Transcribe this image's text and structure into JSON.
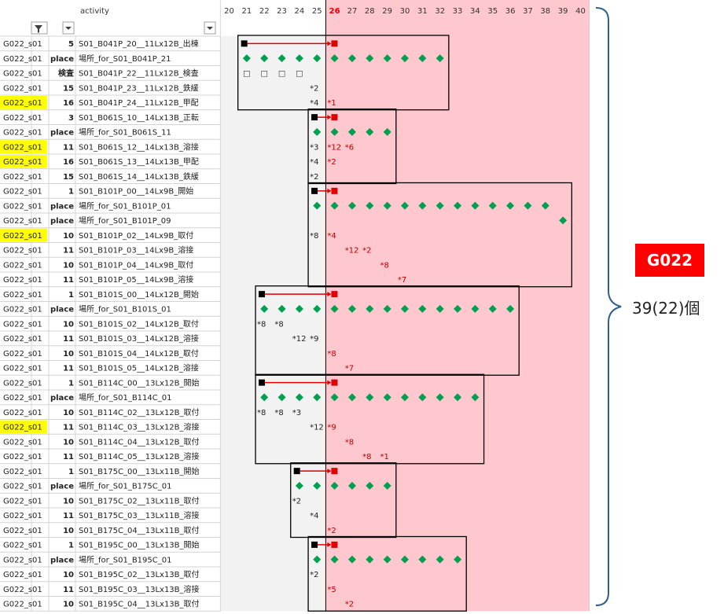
{
  "header": {
    "activity_label": "activity",
    "days": [
      "20",
      "21",
      "22",
      "23",
      "24",
      "25",
      "26",
      "27",
      "28",
      "29",
      "30",
      "31",
      "32",
      "33",
      "34",
      "35",
      "36",
      "37",
      "38",
      "39",
      "40"
    ],
    "highlight_day": "26"
  },
  "colors": {
    "pink_region": "#ffc7ce",
    "grey_region": "#f2f2f2",
    "yellow_highlight": "#ffff00",
    "diamond": "#00a050",
    "arrow": "#e00000",
    "badge_bg": "#ff0000",
    "right_red_mark": "#c00000"
  },
  "rows": [
    {
      "code": "G022_s01",
      "num": "5",
      "activity": "S01_B041P_20__11Lx12B_出棟",
      "hl": false
    },
    {
      "code": "G022_s01",
      "num": "place",
      "activity": "場所_for_S01_B041P_21",
      "hl": false
    },
    {
      "code": "G022_s01",
      "num": "検査",
      "activity": "S01_B041P_22__11Lx12B_検査",
      "hl": false
    },
    {
      "code": "G022_s01",
      "num": "15",
      "activity": "S01_B041P_23__11Lx12B_鉄緩",
      "hl": false
    },
    {
      "code": "G022_s01",
      "num": "16",
      "activity": "S01_B041P_24__11Lx12B_甲配",
      "hl": true
    },
    {
      "code": "G022_s01",
      "num": "3",
      "activity": "S01_B061S_10__14Lx13B_正転",
      "hl": false
    },
    {
      "code": "G022_s01",
      "num": "place",
      "activity": "場所_for_S01_B061S_11",
      "hl": false
    },
    {
      "code": "G022_s01",
      "num": "11",
      "activity": "S01_B061S_12__14Lx13B_溶接",
      "hl": true
    },
    {
      "code": "G022_s01",
      "num": "16",
      "activity": "S01_B061S_13__14Lx13B_甲配",
      "hl": true
    },
    {
      "code": "G022_s01",
      "num": "15",
      "activity": "S01_B061S_14__14Lx13B_鉄緩",
      "hl": false
    },
    {
      "code": "G022_s01",
      "num": "1",
      "activity": "S01_B101P_00__14Lx9B_開始",
      "hl": false
    },
    {
      "code": "G022_s01",
      "num": "place",
      "activity": "場所_for_S01_B101P_01",
      "hl": false
    },
    {
      "code": "G022_s01",
      "num": "place",
      "activity": "場所_for_S01_B101P_09",
      "hl": false
    },
    {
      "code": "G022_s01",
      "num": "10",
      "activity": "S01_B101P_02__14Lx9B_取付",
      "hl": true
    },
    {
      "code": "G022_s01",
      "num": "11",
      "activity": "S01_B101P_03__14Lx9B_溶接",
      "hl": false
    },
    {
      "code": "G022_s01",
      "num": "10",
      "activity": "S01_B101P_04__14Lx9B_取付",
      "hl": false
    },
    {
      "code": "G022_s01",
      "num": "11",
      "activity": "S01_B101P_05__14Lx9B_溶接",
      "hl": false
    },
    {
      "code": "G022_s01",
      "num": "1",
      "activity": "S01_B101S_00__14Lx12B_開始",
      "hl": false
    },
    {
      "code": "G022_s01",
      "num": "place",
      "activity": "場所_for_S01_B101S_01",
      "hl": false
    },
    {
      "code": "G022_s01",
      "num": "10",
      "activity": "S01_B101S_02__14Lx12B_取付",
      "hl": false
    },
    {
      "code": "G022_s01",
      "num": "11",
      "activity": "S01_B101S_03__14Lx12B_溶接",
      "hl": false
    },
    {
      "code": "G022_s01",
      "num": "10",
      "activity": "S01_B101S_04__14Lx12B_取付",
      "hl": false
    },
    {
      "code": "G022_s01",
      "num": "11",
      "activity": "S01_B101S_05__14Lx12B_溶接",
      "hl": false
    },
    {
      "code": "G022_s01",
      "num": "1",
      "activity": "S01_B114C_00__13Lx12B_開始",
      "hl": false
    },
    {
      "code": "G022_s01",
      "num": "place",
      "activity": "場所_for_S01_B114C_01",
      "hl": false
    },
    {
      "code": "G022_s01",
      "num": "10",
      "activity": "S01_B114C_02__13Lx12B_取付",
      "hl": false
    },
    {
      "code": "G022_s01",
      "num": "11",
      "activity": "S01_B114C_03__13Lx12B_溶接",
      "hl": true
    },
    {
      "code": "G022_s01",
      "num": "10",
      "activity": "S01_B114C_04__13Lx12B_取付",
      "hl": false
    },
    {
      "code": "G022_s01",
      "num": "11",
      "activity": "S01_B114C_05__13Lx12B_溶接",
      "hl": false
    },
    {
      "code": "G022_s01",
      "num": "1",
      "activity": "S01_B175C_00__13Lx11B_開始",
      "hl": false
    },
    {
      "code": "G022_s01",
      "num": "place",
      "activity": "場所_for_S01_B175C_01",
      "hl": false
    },
    {
      "code": "G022_s01",
      "num": "10",
      "activity": "S01_B175C_02__13Lx11B_取付",
      "hl": false
    },
    {
      "code": "G022_s01",
      "num": "11",
      "activity": "S01_B175C_03__13Lx11B_溶接",
      "hl": false
    },
    {
      "code": "G022_s01",
      "num": "10",
      "activity": "S01_B175C_04__13Lx11B_取付",
      "hl": false
    },
    {
      "code": "G022_s01",
      "num": "1",
      "activity": "S01_B195C_00__13Lx13B_開始",
      "hl": false
    },
    {
      "code": "G022_s01",
      "num": "place",
      "activity": "場所_for_S01_B195C_01",
      "hl": false
    },
    {
      "code": "G022_s01",
      "num": "10",
      "activity": "S01_B195C_02__13Lx13B_取付",
      "hl": false
    },
    {
      "code": "G022_s01",
      "num": "11",
      "activity": "S01_B195C_03__13Lx13B_溶接",
      "hl": false
    },
    {
      "code": "G022_s01",
      "num": "10",
      "activity": "S01_B195C_04__13Lx13B_取付",
      "hl": false
    }
  ],
  "groups": [
    {
      "start": 0,
      "end": 4,
      "from": "21",
      "to": "32"
    },
    {
      "start": 5,
      "end": 9,
      "from": "25",
      "to": "29"
    },
    {
      "start": 10,
      "end": 16,
      "from": "25",
      "to": "39"
    },
    {
      "start": 17,
      "end": 22,
      "from": "22",
      "to": "36"
    },
    {
      "start": 23,
      "end": 28,
      "from": "22",
      "to": "34"
    },
    {
      "start": 29,
      "end": 33,
      "from": "24",
      "to": "29"
    },
    {
      "start": 34,
      "end": 38,
      "from": "25",
      "to": "33"
    }
  ],
  "arrows": [
    {
      "row": 0,
      "from": "21",
      "to": "26"
    },
    {
      "row": 5,
      "from": "25",
      "to": "26"
    },
    {
      "row": 10,
      "from": "25",
      "to": "26"
    },
    {
      "row": 17,
      "from": "22",
      "to": "26"
    },
    {
      "row": 23,
      "from": "22",
      "to": "26"
    },
    {
      "row": 29,
      "from": "24",
      "to": "26"
    },
    {
      "row": 34,
      "from": "25",
      "to": "26"
    }
  ],
  "diamond_rows": [
    {
      "row": 1,
      "days": [
        "21",
        "22",
        "23",
        "24",
        "25",
        "26",
        "27",
        "28",
        "29",
        "30",
        "31",
        "32"
      ]
    },
    {
      "row": 6,
      "days": [
        "25",
        "26",
        "27",
        "28",
        "29"
      ]
    },
    {
      "row": 11,
      "days": [
        "25",
        "26",
        "27",
        "28",
        "29",
        "30",
        "31",
        "32",
        "33",
        "34",
        "35",
        "36",
        "37",
        "38"
      ]
    },
    {
      "row": 12,
      "days": [
        "39"
      ]
    },
    {
      "row": 18,
      "days": [
        "22",
        "23",
        "24",
        "25",
        "26",
        "27",
        "28",
        "29",
        "30",
        "31",
        "32",
        "33",
        "34",
        "35",
        "36"
      ]
    },
    {
      "row": 24,
      "days": [
        "22",
        "23",
        "24",
        "25",
        "26",
        "27",
        "28",
        "29",
        "30",
        "31",
        "32",
        "33",
        "34"
      ]
    },
    {
      "row": 30,
      "days": [
        "24",
        "25",
        "26",
        "27",
        "28",
        "29"
      ]
    },
    {
      "row": 35,
      "days": [
        "25",
        "26",
        "27",
        "28",
        "29",
        "30",
        "31",
        "32",
        "33"
      ]
    }
  ],
  "squares": {
    "row": 2,
    "days": [
      "21",
      "22",
      "23",
      "24"
    ],
    "glyph": "□"
  },
  "marks": [
    {
      "row": 3,
      "day": "25",
      "text": "*2"
    },
    {
      "row": 4,
      "day": "25",
      "text": "*4"
    },
    {
      "row": 4,
      "day": "26",
      "text": "*1"
    },
    {
      "row": 7,
      "day": "25",
      "text": "*3"
    },
    {
      "row": 7,
      "day": "26",
      "text": "*12"
    },
    {
      "row": 7,
      "day": "27",
      "text": "*6"
    },
    {
      "row": 8,
      "day": "25",
      "text": "*4"
    },
    {
      "row": 8,
      "day": "26",
      "text": "*2"
    },
    {
      "row": 9,
      "day": "25",
      "text": "*2"
    },
    {
      "row": 13,
      "day": "25",
      "text": "*8"
    },
    {
      "row": 13,
      "day": "26",
      "text": "*4"
    },
    {
      "row": 14,
      "day": "27",
      "text": "*12"
    },
    {
      "row": 14,
      "day": "28",
      "text": "*2"
    },
    {
      "row": 15,
      "day": "29",
      "text": "*8"
    },
    {
      "row": 16,
      "day": "30",
      "text": "*7"
    },
    {
      "row": 19,
      "day": "22",
      "text": "*8"
    },
    {
      "row": 19,
      "day": "23",
      "text": "*8"
    },
    {
      "row": 20,
      "day": "24",
      "text": "*12"
    },
    {
      "row": 20,
      "day": "25",
      "text": "*9"
    },
    {
      "row": 21,
      "day": "26",
      "text": "*8"
    },
    {
      "row": 22,
      "day": "27",
      "text": "*7"
    },
    {
      "row": 25,
      "day": "22",
      "text": "*8"
    },
    {
      "row": 25,
      "day": "23",
      "text": "*8"
    },
    {
      "row": 25,
      "day": "24",
      "text": "*3"
    },
    {
      "row": 26,
      "day": "25",
      "text": "*12"
    },
    {
      "row": 26,
      "day": "26",
      "text": "*9"
    },
    {
      "row": 27,
      "day": "27",
      "text": "*8"
    },
    {
      "row": 28,
      "day": "28",
      "text": "*8"
    },
    {
      "row": 28,
      "day": "29",
      "text": "*1"
    },
    {
      "row": 31,
      "day": "24",
      "text": "*2"
    },
    {
      "row": 32,
      "day": "25",
      "text": "*4"
    },
    {
      "row": 33,
      "day": "26",
      "text": "*2"
    },
    {
      "row": 36,
      "day": "25",
      "text": "*2"
    },
    {
      "row": 37,
      "day": "26",
      "text": "*5"
    },
    {
      "row": 38,
      "day": "27",
      "text": "*2"
    }
  ],
  "side": {
    "badge": "G022",
    "count": "39(22)個"
  }
}
